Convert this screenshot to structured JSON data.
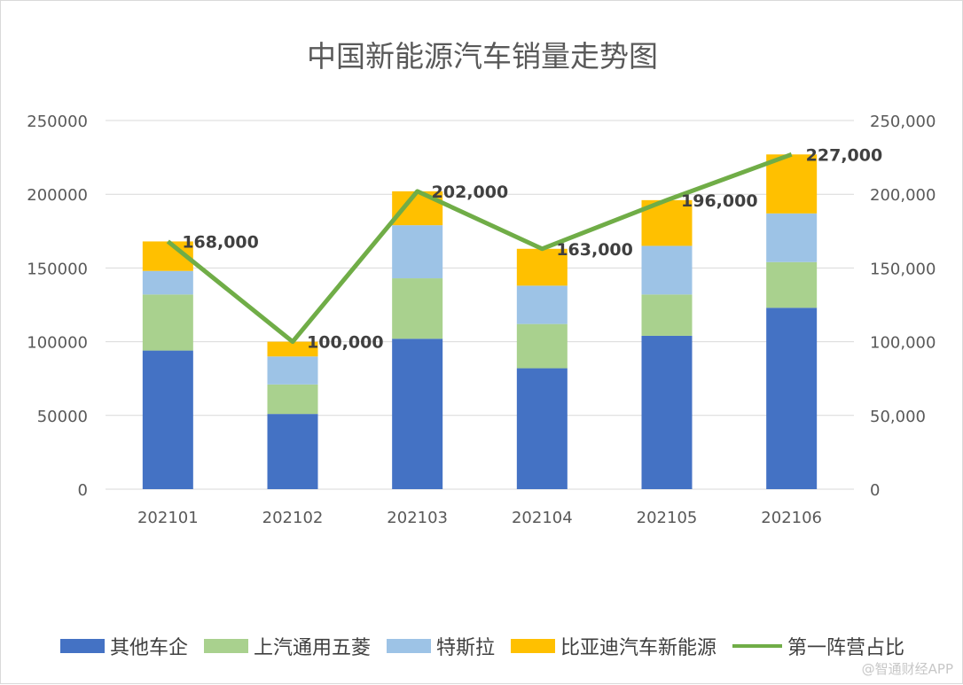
{
  "chart_data": {
    "type": "bar",
    "title": "中国新能源汽车销量走势图",
    "categories": [
      "202101",
      "202102",
      "202103",
      "202104",
      "202105",
      "202106"
    ],
    "series": [
      {
        "name": "其他车企",
        "type": "bar",
        "axis": "left",
        "color": "#4472C4",
        "values": [
          94000,
          51000,
          102000,
          82000,
          104000,
          123000
        ]
      },
      {
        "name": "上汽通用五菱",
        "type": "bar",
        "axis": "left",
        "color": "#A9D18E",
        "values": [
          38000,
          20000,
          41000,
          30000,
          28000,
          31000
        ]
      },
      {
        "name": "特斯拉",
        "type": "bar",
        "axis": "left",
        "color": "#9DC3E6",
        "values": [
          16000,
          19000,
          36000,
          26000,
          33000,
          33000
        ]
      },
      {
        "name": "比亚迪汽车新能源",
        "type": "bar",
        "axis": "left",
        "color": "#FFC000",
        "values": [
          20000,
          10000,
          23000,
          25000,
          31000,
          40000
        ]
      },
      {
        "name": "第一阵营占比",
        "type": "line",
        "axis": "right",
        "color": "#70AD47",
        "values": [
          168000,
          100000,
          202000,
          163000,
          196000,
          227000
        ]
      }
    ],
    "line_labels": [
      "168,000",
      "100,000",
      "202,000",
      "163,000",
      "196,000",
      "227,000"
    ],
    "y_left": {
      "ticks": [
        "0",
        "50000",
        "100000",
        "150000",
        "200000",
        "250000"
      ],
      "ylim": [
        0,
        250000
      ]
    },
    "y_right": {
      "ticks": [
        "0",
        "50,000",
        "100,000",
        "150,000",
        "200,000",
        "250,000"
      ],
      "ylim": [
        0,
        250000
      ]
    },
    "grid": true,
    "legend_position": "bottom"
  },
  "watermark": "@智通财经APP"
}
